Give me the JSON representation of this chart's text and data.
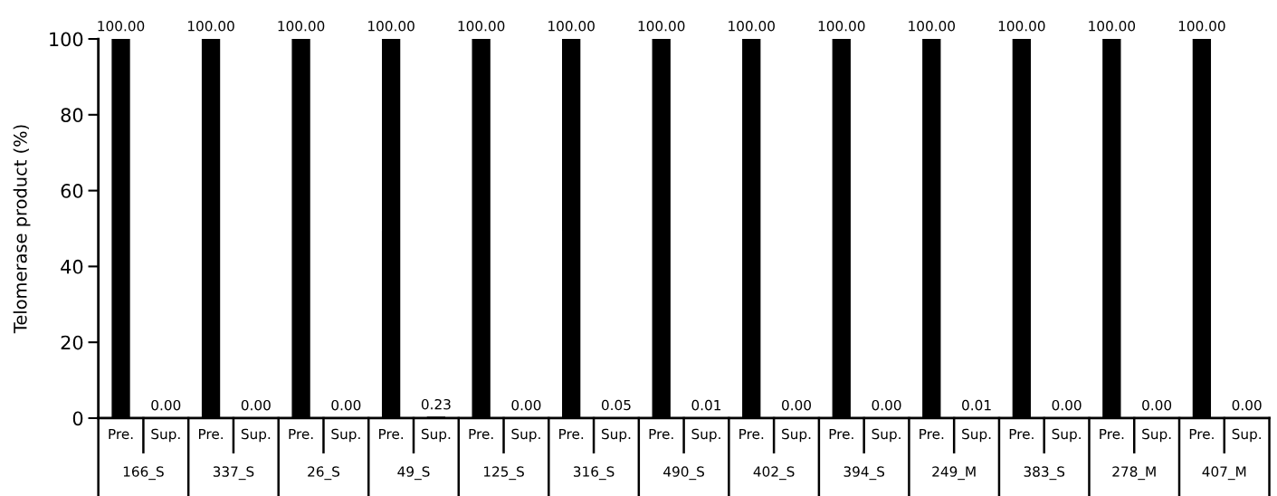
{
  "chart_data": {
    "type": "bar",
    "ylabel": "Telomerase product (%)",
    "categories": [
      "166_S",
      "337_S",
      "26_S",
      "49_S",
      "125_S",
      "316_S",
      "490_S",
      "402_S",
      "394_S",
      "249_M",
      "383_S",
      "278_M",
      "407_M"
    ],
    "series": [
      {
        "name": "Pre.",
        "color": "#000000",
        "values": [
          100,
          100,
          100,
          100,
          100,
          100,
          100,
          100,
          100,
          100,
          100,
          100,
          100
        ],
        "value_labels": [
          "100.00",
          "100.00",
          "100.00",
          "100.00",
          "100.00",
          "100.00",
          "100.00",
          "100.00",
          "100.00",
          "100.00",
          "100.00",
          "100.00",
          "100.00"
        ]
      },
      {
        "name": "Sup.",
        "color": "#000000",
        "values": [
          0,
          0,
          0,
          0.23,
          0,
          0.05,
          0.01,
          0,
          0,
          0.01,
          0,
          0,
          0
        ],
        "value_labels": [
          "0.00",
          "0.00",
          "0.00",
          "0.23",
          "0.00",
          "0.05",
          "0.01",
          "0.00",
          "0.00",
          "0.01",
          "0.00",
          "0.00",
          "0.00"
        ]
      }
    ],
    "ylim": [
      0,
      100
    ],
    "yticks": [
      0,
      20,
      40,
      60,
      80,
      100
    ],
    "grid": false,
    "legend": false
  }
}
